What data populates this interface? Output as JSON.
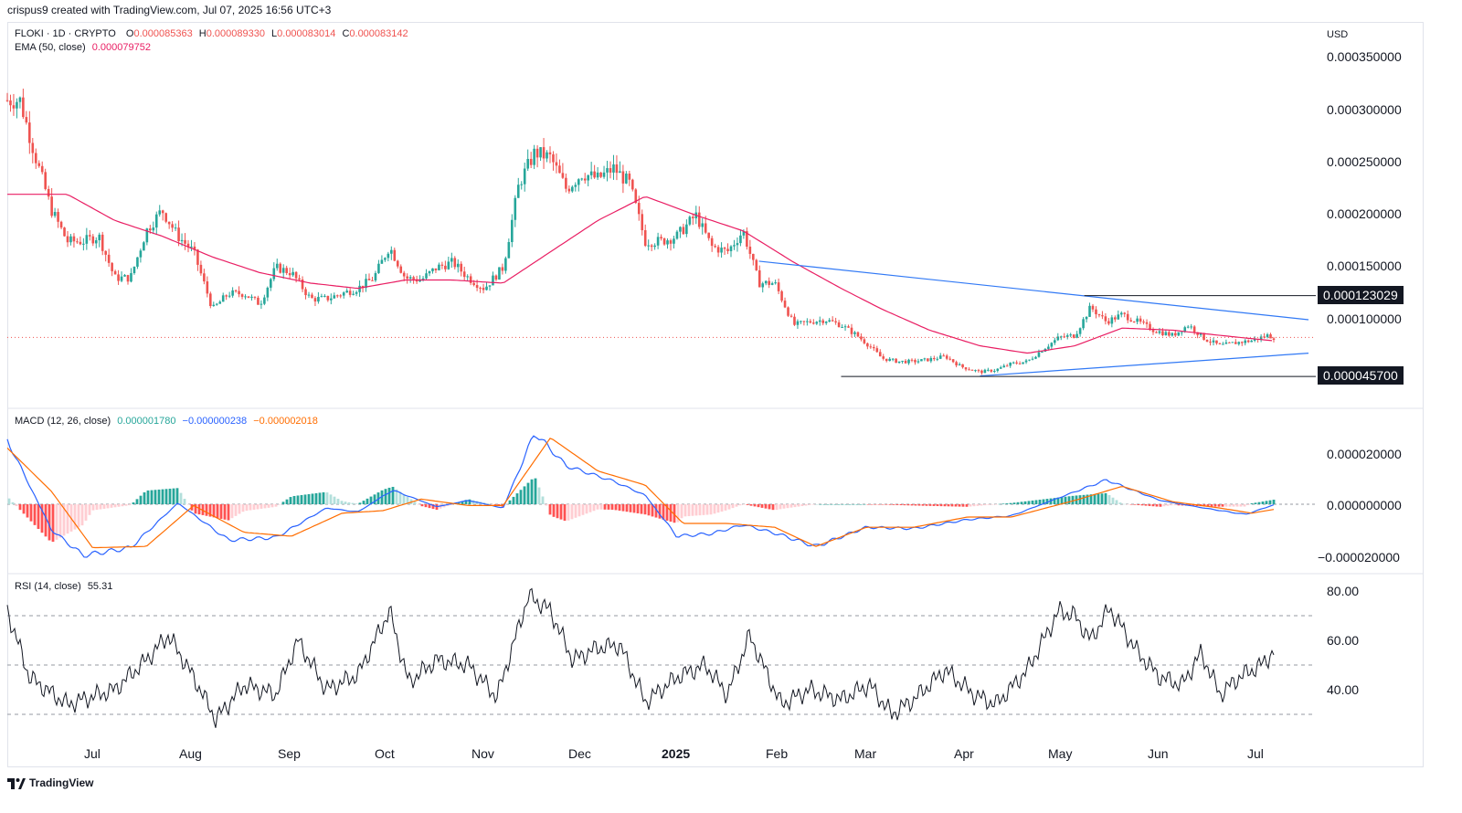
{
  "caption": "crispus9 created with TradingView.com, Jul 07, 2025 16:56 UTC+3",
  "currency": "USD",
  "symbol_line": "FLOKI · 1D · CRYPTO",
  "ohlc": {
    "o_label": "O",
    "o": "0.000085363",
    "h_label": "H",
    "h": "0.000089330",
    "l_label": "L",
    "l": "0.000083014",
    "c_label": "C",
    "c": "0.000083142"
  },
  "ema_label": "EMA (50, close)",
  "ema_value": "0.000079752",
  "callouts": {
    "resistance": "0.000123029",
    "support": "0.000045700"
  },
  "macd": {
    "label": "MACD (12, 26, close)",
    "hist": "0.000001780",
    "macd": "−0.000000238",
    "signal": "−0.000002018"
  },
  "rsi": {
    "label": "RSI (14, close)",
    "value": "55.31"
  },
  "footer": "TradingView",
  "colors": {
    "up": "#26a69a",
    "down": "#ef5350",
    "ema": "#e91e63",
    "macd": "#2962ff",
    "signal": "#ff6d00",
    "trend": "#3179f5"
  },
  "chart_data": [
    {
      "type": "candlestick",
      "title": "FLOKI · 1D · CRYPTO",
      "yaxis_ticks": [
        "0.000350000",
        "0.000300000",
        "0.000250000",
        "0.000200000",
        "0.000150000",
        "0.000100000"
      ],
      "ylim": [
        4e-05,
        0.000365
      ],
      "x_ticks": [
        "Jul",
        "Aug",
        "Sep",
        "Oct",
        "Nov",
        "Dec",
        "2025",
        "Feb",
        "Mar",
        "Apr",
        "May",
        "Jun",
        "Jul"
      ],
      "close_approx": [
        [
          "2024-06-05",
          0.00031
        ],
        [
          "2024-06-10",
          0.000255
        ],
        [
          "2024-06-15",
          0.000205
        ],
        [
          "2024-06-20",
          0.000175
        ],
        [
          "2024-06-25",
          0.000175
        ],
        [
          "2024-06-30",
          0.00018
        ],
        [
          "2024-07-05",
          0.00014
        ],
        [
          "2024-07-10",
          0.00014
        ],
        [
          "2024-07-15",
          0.000185
        ],
        [
          "2024-07-20",
          0.000205
        ],
        [
          "2024-07-25",
          0.00018
        ],
        [
          "2024-07-30",
          0.000165
        ],
        [
          "2024-08-05",
          0.00011
        ],
        [
          "2024-08-10",
          0.000125
        ],
        [
          "2024-08-15",
          0.000125
        ],
        [
          "2024-08-20",
          0.000115
        ],
        [
          "2024-08-25",
          0.00015
        ],
        [
          "2024-08-30",
          0.000145
        ],
        [
          "2024-09-05",
          0.00012
        ],
        [
          "2024-09-10",
          0.00012
        ],
        [
          "2024-09-15",
          0.000125
        ],
        [
          "2024-09-20",
          0.00013
        ],
        [
          "2024-09-25",
          0.00014
        ],
        [
          "2024-09-30",
          0.00017
        ],
        [
          "2024-10-05",
          0.00014
        ],
        [
          "2024-10-10",
          0.000138
        ],
        [
          "2024-10-15",
          0.00015
        ],
        [
          "2024-10-20",
          0.000155
        ],
        [
          "2024-10-25",
          0.00014
        ],
        [
          "2024-10-30",
          0.00013
        ],
        [
          "2024-11-05",
          0.00015
        ],
        [
          "2024-11-10",
          0.00023
        ],
        [
          "2024-11-15",
          0.00026
        ],
        [
          "2024-11-20",
          0.000255
        ],
        [
          "2024-11-25",
          0.000225
        ],
        [
          "2024-11-30",
          0.00024
        ],
        [
          "2024-12-05",
          0.000235
        ],
        [
          "2024-12-10",
          0.000245
        ],
        [
          "2024-12-15",
          0.00023
        ],
        [
          "2024-12-20",
          0.000175
        ],
        [
          "2024-12-25",
          0.000175
        ],
        [
          "2024-12-30",
          0.00018
        ],
        [
          "2025-01-05",
          0.0002
        ],
        [
          "2025-01-10",
          0.00017
        ],
        [
          "2025-01-15",
          0.000165
        ],
        [
          "2025-01-20",
          0.000185
        ],
        [
          "2025-01-25",
          0.000135
        ],
        [
          "2025-01-30",
          0.000135
        ],
        [
          "2025-02-05",
          9.5e-05
        ],
        [
          "2025-02-10",
          9.8e-05
        ],
        [
          "2025-02-15",
          0.0001
        ],
        [
          "2025-02-20",
          9.5e-05
        ],
        [
          "2025-02-25",
          8.5e-05
        ],
        [
          "2025-03-01",
          7.5e-05
        ],
        [
          "2025-03-05",
          6.3e-05
        ],
        [
          "2025-03-10",
          6e-05
        ],
        [
          "2025-03-15",
          6e-05
        ],
        [
          "2025-03-20",
          6.2e-05
        ],
        [
          "2025-03-25",
          6.5e-05
        ],
        [
          "2025-03-30",
          5.5e-05
        ],
        [
          "2025-04-05",
          5e-05
        ],
        [
          "2025-04-10",
          5.2e-05
        ],
        [
          "2025-04-15",
          5.8e-05
        ],
        [
          "2025-04-20",
          6e-05
        ],
        [
          "2025-04-25",
          7.2e-05
        ],
        [
          "2025-04-30",
          8.3e-05
        ],
        [
          "2025-05-05",
          8.5e-05
        ],
        [
          "2025-05-10",
          0.000112
        ],
        [
          "2025-05-15",
          9.8e-05
        ],
        [
          "2025-05-20",
          0.000105
        ],
        [
          "2025-05-25",
          9.8e-05
        ],
        [
          "2025-05-30",
          9e-05
        ],
        [
          "2025-06-05",
          8.5e-05
        ],
        [
          "2025-06-10",
          9.5e-05
        ],
        [
          "2025-06-15",
          8.2e-05
        ],
        [
          "2025-06-20",
          7.5e-05
        ],
        [
          "2025-06-25",
          7.8e-05
        ],
        [
          "2025-06-30",
          8e-05
        ],
        [
          "2025-07-05",
          8.5e-05
        ],
        [
          "2025-07-07",
          8.31e-05
        ]
      ],
      "ema_approx": [
        [
          "2024-06-05",
          0.00022
        ],
        [
          "2024-06-20",
          0.00022
        ],
        [
          "2024-07-05",
          0.000195
        ],
        [
          "2024-07-20",
          0.00018
        ],
        [
          "2024-08-05",
          0.00016
        ],
        [
          "2024-08-20",
          0.000145
        ],
        [
          "2024-09-05",
          0.000135
        ],
        [
          "2024-09-20",
          0.00013
        ],
        [
          "2024-10-05",
          0.000138
        ],
        [
          "2024-10-20",
          0.000138
        ],
        [
          "2024-11-05",
          0.000135
        ],
        [
          "2024-11-20",
          0.000165
        ],
        [
          "2024-12-05",
          0.000195
        ],
        [
          "2024-12-20",
          0.000218
        ],
        [
          "2025-01-05",
          0.0002
        ],
        [
          "2025-01-20",
          0.000185
        ],
        [
          "2025-02-05",
          0.000155
        ],
        [
          "2025-02-20",
          0.00013
        ],
        [
          "2025-03-05",
          0.00011
        ],
        [
          "2025-03-20",
          9e-05
        ],
        [
          "2025-04-05",
          7.5e-05
        ],
        [
          "2025-04-20",
          6.8e-05
        ],
        [
          "2025-05-05",
          7.5e-05
        ],
        [
          "2025-05-20",
          9.2e-05
        ],
        [
          "2025-06-05",
          9e-05
        ],
        [
          "2025-06-20",
          8.5e-05
        ],
        [
          "2025-07-07",
          7.98e-05
        ]
      ]
    },
    {
      "type": "line",
      "title": "MACD (12, 26, close)",
      "yaxis_ticks": [
        "0.000020000",
        "0.000000000",
        "−0.000020000"
      ],
      "series": [
        {
          "name": "MACD"
        },
        {
          "name": "Signal"
        },
        {
          "name": "Histogram"
        }
      ]
    },
    {
      "type": "line",
      "title": "RSI (14, close)",
      "yaxis_ticks": [
        "80.00",
        "60.00",
        "40.00"
      ],
      "ylim": [
        25,
        85
      ],
      "levels": [
        70,
        50,
        30
      ]
    }
  ]
}
